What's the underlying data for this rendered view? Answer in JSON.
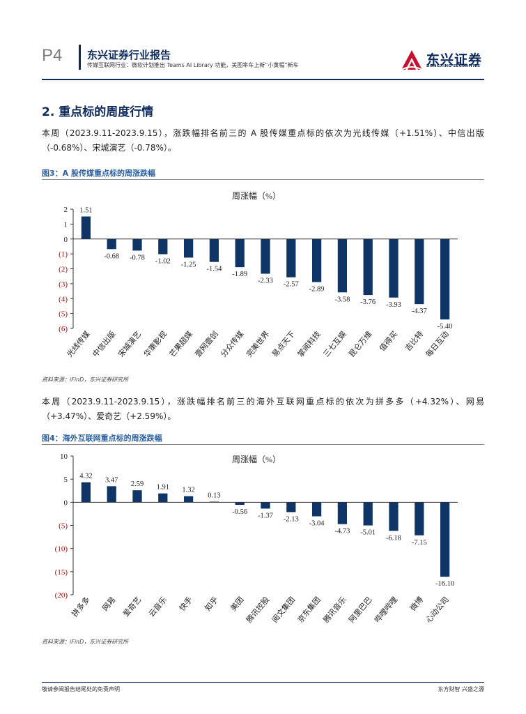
{
  "header": {
    "page_number": "P4",
    "report_title": "东兴证券行业报告",
    "report_subtitle": "传媒互联网行业：微软计划推出 Teams AI Library 功能，美图率车上新“小黄帽”新车",
    "logo_text": "东兴证券",
    "logo_en": "DONGXING SECURITIES",
    "logo_icon": "dongxing-logo-icon"
  },
  "section": {
    "title": "2. 重点标的周度行情"
  },
  "para1": "本周（2023.9.11-2023.9.15），涨跌幅排名前三的 A 股传媒重点标的依次为光线传媒（+1.51%）、中信出版（-0.68%）、宋城演艺（-0.78%）。",
  "fig3": {
    "title": "图3：A 股传媒重点标的周涨跌幅",
    "source": "资料来源：iFinD，东兴证券研究所"
  },
  "para2": "本周（2023.9.11-2023.9.15），涨跌幅排名前三的海外互联网重点标的依次为拼多多（+4.32%）、网易（+3.47%）、爱奇艺（+2.59%）。",
  "fig4": {
    "title": "图4：海外互联网重点标的周涨跌幅",
    "source": "资料来源：iFinD，东兴证券研究所"
  },
  "footer": {
    "left": "敬请参阅报告结尾处的免责声明",
    "right": "东方财智 兴盛之源"
  },
  "colors": {
    "bar": "#0e3566",
    "negative_tick": "#c00000",
    "brand": "#0e2a5c"
  },
  "chart_data": [
    {
      "type": "bar",
      "title": "周涨幅（%）",
      "categories": [
        "光线传媒",
        "中信出版",
        "宋城演艺",
        "华策影视",
        "芒果超媒",
        "壹网壹创",
        "分众传媒",
        "完美世界",
        "易点天下",
        "掌阅科技",
        "三七互娱",
        "昆仑万维",
        "值得买",
        "吉比特",
        "每日互动"
      ],
      "values": [
        1.51,
        -0.68,
        -0.78,
        -1.02,
        -1.25,
        -1.54,
        -1.89,
        -2.33,
        -2.57,
        -2.89,
        -3.58,
        -3.76,
        -3.93,
        -4.37,
        -5.4
      ],
      "value_labels": [
        "1.51",
        "-0.68",
        "-0.78",
        "-1.02",
        "-1.25",
        "-1.54",
        "-1.89",
        "-2.33",
        "-2.57",
        "-2.89",
        "-3.58",
        "-3.76",
        "-3.93",
        "-4.37",
        "-5.40"
      ],
      "ylim": [
        -6,
        2
      ],
      "yticks": [
        2,
        1,
        0,
        -1,
        -2,
        -3,
        -4,
        -5,
        -6
      ],
      "ytick_labels": [
        "2",
        "1",
        "0",
        "(1)",
        "(2)",
        "(3)",
        "(4)",
        "(5)",
        "(6)"
      ],
      "xlabel": "",
      "ylabel": "",
      "grid": false
    },
    {
      "type": "bar",
      "title": "周涨幅（%）",
      "categories": [
        "拼多多",
        "网易",
        "爱奇艺",
        "云音乐",
        "快手",
        "知乎",
        "美团",
        "腾讯控股",
        "阅文集团",
        "京东集团",
        "腾讯音乐",
        "阿里巴巴",
        "哔哩哔哩",
        "微博",
        "心动公司"
      ],
      "values": [
        4.32,
        3.47,
        2.59,
        1.91,
        1.32,
        0.13,
        -0.56,
        -1.37,
        -2.13,
        -3.04,
        -4.73,
        -5.01,
        -6.18,
        -7.15,
        -16.1
      ],
      "value_labels": [
        "4.32",
        "3.47",
        "2.59",
        "1.91",
        "1.32",
        "0.13",
        "-0.56",
        "-1.37",
        "-2.13",
        "-3.04",
        "-4.73",
        "-5.01",
        "-6.18",
        "-7.15",
        "-16.10"
      ],
      "ylim": [
        -20,
        10
      ],
      "yticks": [
        10,
        5,
        0,
        -5,
        -10,
        -15,
        -20
      ],
      "ytick_labels": [
        "10",
        "5",
        "0",
        "(5)",
        "(10)",
        "(15)",
        "(20)"
      ],
      "xlabel": "",
      "ylabel": "",
      "grid": false
    }
  ]
}
